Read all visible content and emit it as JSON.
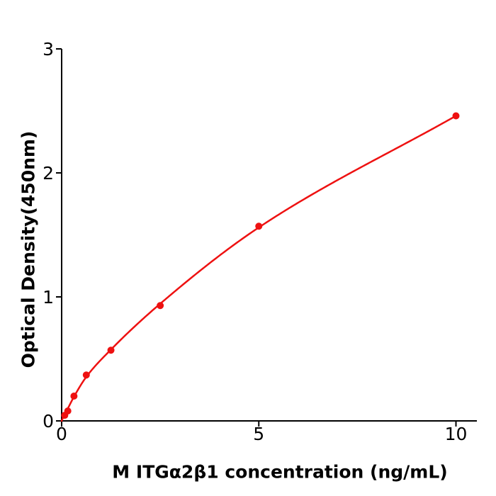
{
  "chart_data": {
    "type": "scatter",
    "title": "",
    "xlabel": "M  ITGα2β1 concentration (ng/mL)",
    "ylabel": "Optical Density(450nm)",
    "x": [
      0.078,
      0.156,
      0.3125,
      0.625,
      1.25,
      2.5,
      5,
      10
    ],
    "y": [
      0.045,
      0.08,
      0.2,
      0.37,
      0.57,
      0.93,
      1.57,
      2.46
    ],
    "fit_curve": {
      "x": [
        0,
        0.078,
        0.156,
        0.3125,
        0.625,
        1.25,
        2.5,
        5,
        10
      ],
      "y": [
        0.0,
        0.055,
        0.1,
        0.195,
        0.355,
        0.575,
        0.945,
        1.56,
        2.46
      ]
    },
    "xticks": [
      "0",
      "5",
      "10"
    ],
    "xtick_values": [
      0,
      5,
      10
    ],
    "yticks": [
      "0",
      "1",
      "2",
      "3"
    ],
    "ytick_values": [
      0,
      1,
      2,
      3
    ],
    "xlim": [
      0,
      10.53
    ],
    "ylim": [
      0,
      3
    ],
    "grid": false,
    "legend": null,
    "colors": {
      "series": "#ee1111",
      "axis": "#000000",
      "text": "#000000",
      "background": "#ffffff"
    }
  }
}
